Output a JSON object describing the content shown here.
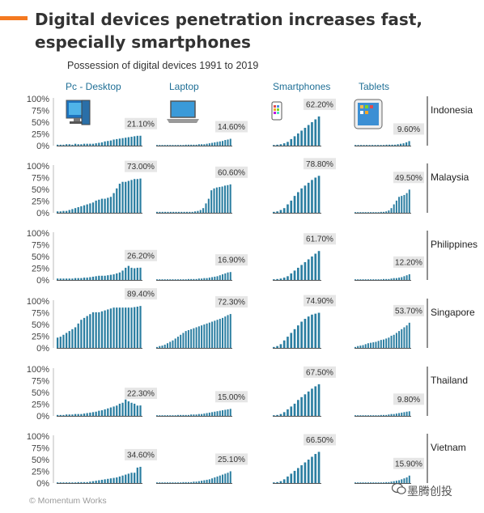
{
  "title": "Digital devices penetration increases fast, especially smartphones",
  "footer": "© Momentum Works",
  "watermark": "墨腾创投",
  "icons": [
    "desktop-computer-icon",
    "laptop-icon",
    "smartphone-icon",
    "tablet-icon"
  ],
  "colors": {
    "bar": "#2b7ea1",
    "accent": "#f47920",
    "label_bg": "#e6e6e6",
    "header": "#1f6f96"
  },
  "chart_data": {
    "type": "bar",
    "title": "Possession of digital devices 1991 to 2019",
    "device_labels": [
      "Pc - Desktop",
      "Laptop",
      "Smartphones",
      "Tablets"
    ],
    "y_ticks": [
      "100%",
      "75%",
      "50%",
      "25%",
      "0%"
    ],
    "ylim": [
      0,
      100
    ],
    "panels": [
      {
        "country": "Indonesia",
        "series": [
          {
            "name": "Pc - Desktop",
            "end_label": "21.10%",
            "values": [
              2,
              2,
              2,
              3,
              3,
              2,
              4,
              3,
              3,
              4,
              4,
              4,
              4,
              5,
              6,
              7,
              9,
              10,
              11,
              13,
              14,
              15,
              16,
              17,
              18,
              19,
              20,
              21,
              21.1
            ]
          },
          {
            "name": "Laptop",
            "end_label": "14.60%",
            "values": [
              1,
              1,
              1,
              1,
              1,
              1,
              1,
              1,
              1,
              1,
              1,
              2,
              2,
              2,
              2,
              2,
              3,
              3,
              3,
              4,
              5,
              6,
              7,
              8,
              9,
              10,
              12,
              13,
              14.6
            ]
          },
          {
            "name": "Smartphones",
            "end_label": "62.20%",
            "values": [
              1,
              2,
              3,
              5,
              8,
              14,
              20,
              26,
              32,
              38,
              44,
              50,
              56,
              62.2
            ]
          },
          {
            "name": "Tablets",
            "end_label": "9.60%",
            "values": [
              0,
              0,
              1,
              1,
              1,
              1,
              1,
              1,
              1,
              1,
              1,
              2,
              2,
              2,
              2,
              3,
              4,
              5,
              7,
              9.6
            ]
          }
        ]
      },
      {
        "country": "Malaysia",
        "series": [
          {
            "name": "Pc - Desktop",
            "end_label": "73.00%",
            "values": [
              3,
              3,
              4,
              4,
              6,
              8,
              10,
              12,
              14,
              16,
              18,
              20,
              22,
              26,
              28,
              30,
              30,
              32,
              34,
              42,
              52,
              62,
              66,
              66,
              68,
              70,
              72,
              72,
              73
            ]
          },
          {
            "name": "Laptop",
            "end_label": "60.60%",
            "values": [
              2,
              2,
              2,
              2,
              2,
              2,
              2,
              2,
              2,
              2,
              2,
              2,
              2,
              2,
              3,
              4,
              6,
              10,
              20,
              30,
              48,
              52,
              54,
              55,
              56,
              58,
              59,
              60.6
            ]
          },
          {
            "name": "Smartphones",
            "end_label": "78.80%",
            "values": [
              2,
              3,
              6,
              10,
              18,
              26,
              36,
              44,
              52,
              58,
              64,
              70,
              75,
              78.8
            ]
          },
          {
            "name": "Tablets",
            "end_label": "49.50%",
            "values": [
              0,
              0,
              1,
              1,
              1,
              1,
              1,
              1,
              1,
              1,
              2,
              2,
              3,
              5,
              10,
              18,
              26,
              34,
              36,
              38,
              42,
              49.5
            ]
          }
        ]
      },
      {
        "country": "Philippines",
        "series": [
          {
            "name": "Pc - Desktop",
            "end_label": "26.20%",
            "values": [
              3,
              3,
              3,
              3,
              3,
              3,
              4,
              4,
              4,
              5,
              5,
              6,
              7,
              8,
              9,
              9,
              9,
              10,
              11,
              12,
              14,
              16,
              20,
              26,
              30,
              26,
              25,
              26,
              26.2
            ]
          },
          {
            "name": "Laptop",
            "end_label": "16.90%",
            "values": [
              1,
              1,
              1,
              1,
              1,
              1,
              1,
              1,
              1,
              1,
              1,
              1,
              2,
              2,
              2,
              2,
              3,
              3,
              4,
              4,
              5,
              6,
              7,
              8,
              10,
              12,
              14,
              16,
              16.9
            ]
          },
          {
            "name": "Smartphones",
            "end_label": "61.70%",
            "values": [
              1,
              2,
              3,
              5,
              8,
              14,
              20,
              26,
              32,
              38,
              44,
              50,
              56,
              61.7
            ]
          },
          {
            "name": "Tablets",
            "end_label": "12.20%",
            "values": [
              0,
              0,
              1,
              1,
              1,
              1,
              1,
              1,
              1,
              1,
              1,
              2,
              2,
              2,
              3,
              4,
              4,
              5,
              6,
              8,
              10,
              12.2
            ]
          }
        ]
      },
      {
        "country": "Singapore",
        "series": [
          {
            "name": "Pc - Desktop",
            "end_label": "89.40%",
            "values": [
              22,
              24,
              28,
              32,
              36,
              40,
              44,
              52,
              60,
              64,
              68,
              72,
              76,
              76,
              76,
              78,
              80,
              82,
              84,
              86,
              86,
              86,
              86,
              86,
              86,
              86,
              87,
              88,
              89.4
            ]
          },
          {
            "name": "Laptop",
            "end_label": "72.30%",
            "values": [
              2,
              4,
              5,
              7,
              10,
              13,
              16,
              20,
              24,
              28,
              32,
              36,
              38,
              40,
              42,
              44,
              46,
              48,
              50,
              52,
              54,
              56,
              58,
              60,
              62,
              64,
              67,
              70,
              72.3
            ]
          },
          {
            "name": "Smartphones",
            "end_label": "74.90%",
            "values": [
              2,
              4,
              8,
              16,
              24,
              32,
              40,
              48,
              56,
              62,
              67,
              71,
              73,
              74.9
            ]
          },
          {
            "name": "Tablets",
            "end_label": "53.70%",
            "values": [
              2,
              4,
              5,
              6,
              8,
              10,
              11,
              12,
              13,
              15,
              17,
              18,
              20,
              22,
              26,
              28,
              32,
              36,
              40,
              44,
              48,
              53.7
            ]
          }
        ]
      },
      {
        "country": "Thailand",
        "series": [
          {
            "name": "Pc - Desktop",
            "end_label": "22.30%",
            "values": [
              2,
              2,
              2,
              3,
              3,
              3,
              4,
              4,
              4,
              5,
              6,
              7,
              8,
              9,
              11,
              12,
              14,
              16,
              18,
              20,
              22,
              26,
              28,
              35,
              31,
              28,
              26,
              22,
              22.3
            ]
          },
          {
            "name": "Laptop",
            "end_label": "15.00%",
            "values": [
              1,
              1,
              1,
              1,
              1,
              1,
              1,
              1,
              2,
              2,
              2,
              2,
              2,
              3,
              3,
              3,
              4,
              4,
              5,
              6,
              7,
              8,
              9,
              10,
              11,
              12,
              13,
              14,
              15
            ]
          },
          {
            "name": "Smartphones",
            "end_label": "67.50%",
            "values": [
              1,
              2,
              4,
              8,
              14,
              20,
              26,
              34,
              40,
              46,
              52,
              58,
              63,
              67.5
            ]
          },
          {
            "name": "Tablets",
            "end_label": "9.80%",
            "values": [
              0,
              0,
              1,
              1,
              1,
              1,
              1,
              1,
              1,
              1,
              2,
              2,
              2,
              3,
              4,
              4,
              5,
              6,
              7,
              8,
              9,
              9.8
            ]
          }
        ]
      },
      {
        "country": "Vietnam",
        "series": [
          {
            "name": "Pc - Desktop",
            "end_label": "34.60%",
            "values": [
              1,
              1,
              1,
              1,
              1,
              1,
              1,
              2,
              2,
              2,
              2,
              3,
              4,
              5,
              6,
              7,
              8,
              9,
              10,
              11,
              12,
              14,
              16,
              18,
              20,
              22,
              22,
              33,
              34.6
            ]
          },
          {
            "name": "Laptop",
            "end_label": "25.10%",
            "values": [
              1,
              1,
              1,
              1,
              1,
              1,
              1,
              1,
              1,
              1,
              2,
              2,
              2,
              2,
              3,
              3,
              4,
              5,
              6,
              7,
              8,
              10,
              12,
              14,
              16,
              18,
              20,
              22,
              25.1
            ]
          },
          {
            "name": "Smartphones",
            "end_label": "66.50%",
            "values": [
              1,
              2,
              4,
              8,
              14,
              20,
              26,
              32,
              38,
              44,
              50,
              56,
              62,
              66.5
            ]
          },
          {
            "name": "Tablets",
            "end_label": "15.90%",
            "values": [
              0,
              0,
              1,
              1,
              1,
              1,
              1,
              1,
              1,
              1,
              1,
              1,
              2,
              2,
              3,
              4,
              5,
              6,
              8,
              10,
              12,
              15.9
            ]
          }
        ]
      }
    ]
  }
}
